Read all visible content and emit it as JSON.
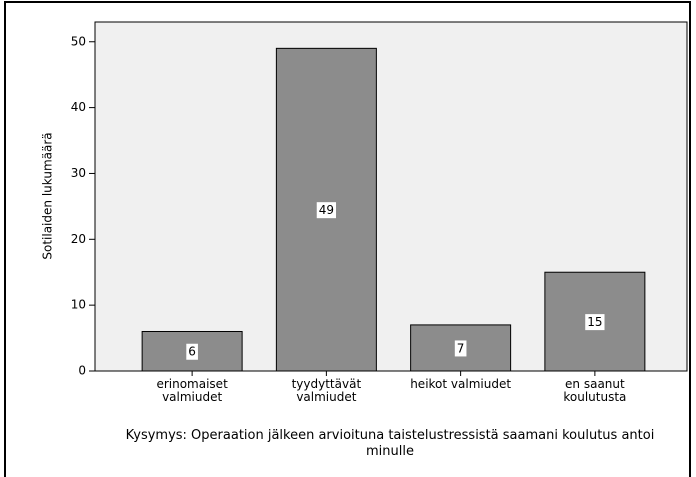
{
  "chart_data": {
    "type": "bar",
    "x_label": "Kysymys: Operaation jälkeen arvioituna taistelustressistä saamani koulutus antoi minulle",
    "y_label": "Sotilaiden lukumäärä",
    "categories": [
      "erinomaiset valmiudet",
      "tyydyttävät valmiudet",
      "heikot valmiudet",
      "en saanut koulutusta"
    ],
    "values": [
      6,
      49,
      7,
      15
    ],
    "color": "#8c8c8c",
    "ylim": [
      0,
      53
    ],
    "yticks": [
      0,
      10,
      20,
      30,
      40,
      50
    ],
    "grid": false
  }
}
